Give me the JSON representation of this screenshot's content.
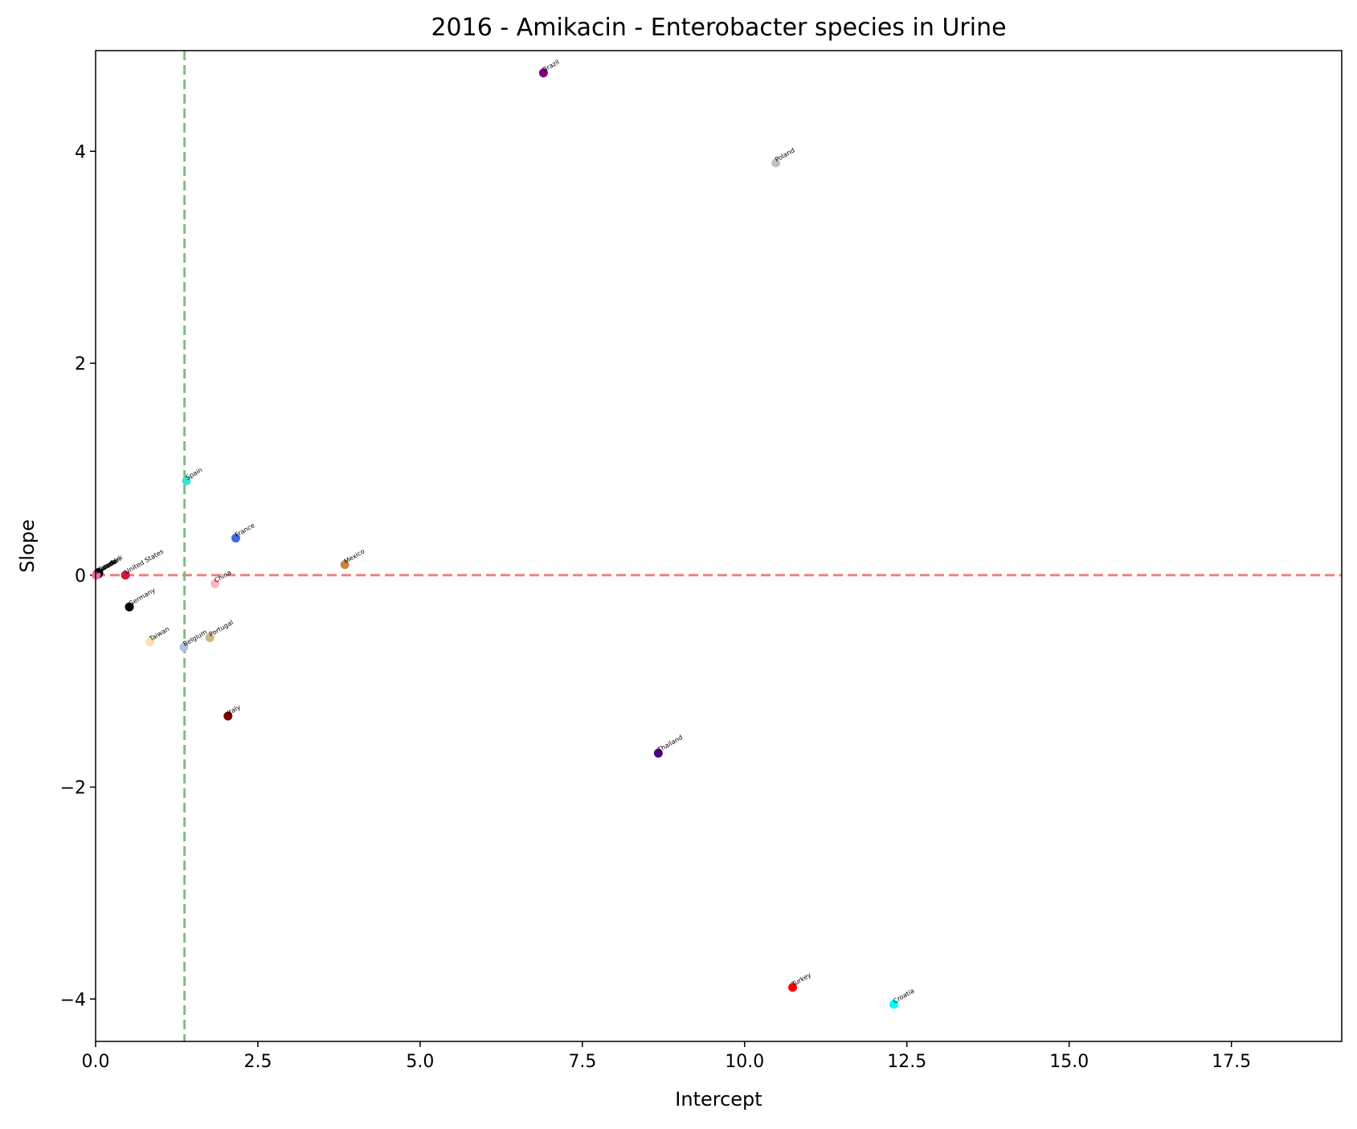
{
  "chart_data": {
    "type": "scatter",
    "title": "2016 - Amikacin - Enterobacter species in Urine",
    "xlabel": "Intercept",
    "ylabel": "Slope",
    "xlim": [
      0,
      19.2
    ],
    "ylim": [
      -4.4,
      4.95
    ],
    "x_ticks": [
      {
        "value": 0,
        "label": "0.0"
      },
      {
        "value": 2.5,
        "label": "2.5"
      },
      {
        "value": 5,
        "label": "5.0"
      },
      {
        "value": 7.5,
        "label": "7.5"
      },
      {
        "value": 10,
        "label": "10.0"
      },
      {
        "value": 12.5,
        "label": "12.5"
      },
      {
        "value": 15,
        "label": "15.0"
      },
      {
        "value": 17.5,
        "label": "17.5"
      }
    ],
    "y_ticks": [
      {
        "value": -4,
        "label": "−4"
      },
      {
        "value": -2,
        "label": "−2"
      },
      {
        "value": 0,
        "label": "0"
      },
      {
        "value": 2,
        "label": "2"
      },
      {
        "value": 4,
        "label": "4"
      }
    ],
    "reference_lines": [
      {
        "orientation": "horizontal",
        "value": 0,
        "color": "#f08080",
        "style": "dashed"
      },
      {
        "orientation": "vertical",
        "value": 1.37,
        "color": "#77c477",
        "style": "dashed"
      }
    ],
    "grid": false,
    "legend": "none",
    "points": [
      {
        "label": "Brazil",
        "x": 6.9,
        "y": 4.74,
        "color": "#800080"
      },
      {
        "label": "Poland",
        "x": 10.48,
        "y": 3.89,
        "color": "#c0c0c0"
      },
      {
        "label": "Spain",
        "x": 1.4,
        "y": 0.89,
        "color": "#40e0d0"
      },
      {
        "label": "France",
        "x": 2.16,
        "y": 0.35,
        "color": "#4169e1"
      },
      {
        "label": "Mexico",
        "x": 3.84,
        "y": 0.1,
        "color": "#cd853f"
      },
      {
        "label": "United States",
        "x": 0.46,
        "y": 0.0,
        "color": "#dc143c"
      },
      {
        "label": "China",
        "x": 1.84,
        "y": -0.08,
        "color": "#ffb6c1"
      },
      {
        "label": "Germany",
        "x": 0.52,
        "y": -0.3,
        "color": "#000000"
      },
      {
        "label": "Taiwan",
        "x": 0.84,
        "y": -0.63,
        "color": "#ffdead"
      },
      {
        "label": "Belgium",
        "x": 1.36,
        "y": -0.68,
        "color": "#b0c4de"
      },
      {
        "label": "Portugal",
        "x": 1.76,
        "y": -0.59,
        "color": "#d2b48c"
      },
      {
        "label": "Italy",
        "x": 2.04,
        "y": -1.33,
        "color": "#800000"
      },
      {
        "label": "Thailand",
        "x": 8.67,
        "y": -1.68,
        "color": "#4b0082"
      },
      {
        "label": "Turkey",
        "x": 10.74,
        "y": -3.89,
        "color": "#ff0000"
      },
      {
        "label": "Croatia",
        "x": 12.3,
        "y": -4.05,
        "color": "#00ffff"
      },
      {
        "label": "Czech",
        "x": 0.05,
        "y": 0.02,
        "color": "#000000"
      },
      {
        "label": "Sweden",
        "x": 0.04,
        "y": 0.01,
        "color": "#000000"
      },
      {
        "label": "Ireland",
        "x": 0.03,
        "y": 0.01,
        "color": "#000000"
      },
      {
        "label": "Denmark",
        "x": 0.02,
        "y": 0.01,
        "color": "#000000"
      },
      {
        "label": "Kuwait",
        "x": 0.01,
        "y": 0.0,
        "color": "#ff69b4"
      }
    ]
  }
}
